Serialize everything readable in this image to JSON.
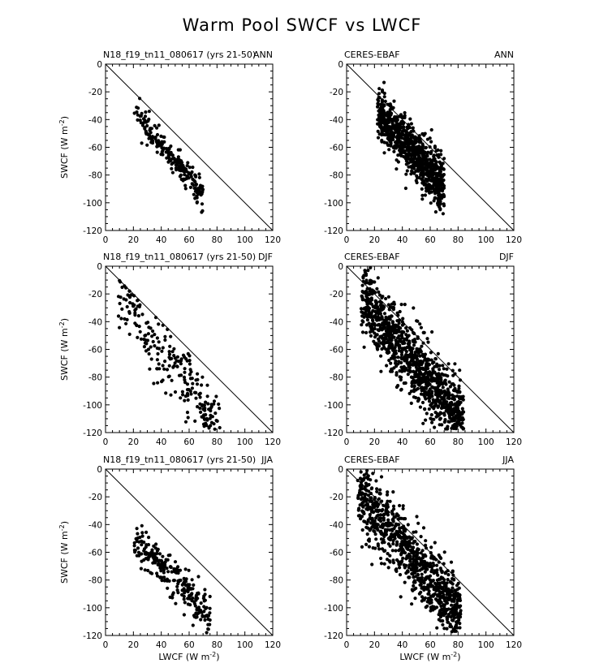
{
  "figure": {
    "title": "Warm Pool SWCF vs LWCF"
  },
  "chart_data": [
    {
      "type": "scatter",
      "panel": "model-ann",
      "title_left": "N18_f19_tn11_080617 (yrs 21-50)",
      "title_right": "ANN",
      "xlabel": "",
      "ylabel": "SWCF (W m^-2)",
      "xlim": [
        0,
        120
      ],
      "ylim": [
        -120,
        0
      ],
      "xticks": [
        0,
        20,
        40,
        60,
        80,
        100,
        120
      ],
      "yticks": [
        0,
        -20,
        -40,
        -60,
        -80,
        -100,
        -120
      ],
      "reference_line": [
        [
          0,
          0
        ],
        [
          120,
          -120
        ]
      ],
      "grid": false,
      "cloud": {
        "n": 220,
        "seed": 11,
        "x": [
          20,
          70
        ],
        "spread": 5,
        "slope": -1.2,
        "intercept": -10,
        "upper_bound": true
      }
    },
    {
      "type": "scatter",
      "panel": "obs-ann",
      "title_left": "CERES-EBAF",
      "title_right": "ANN",
      "xlabel": "",
      "ylabel": "",
      "xlim": [
        0,
        120
      ],
      "ylim": [
        -120,
        0
      ],
      "xticks": [
        0,
        20,
        40,
        60,
        80,
        100,
        120
      ],
      "yticks": [
        0,
        -20,
        -40,
        -60,
        -80,
        -100,
        -120
      ],
      "reference_line": [
        [
          0,
          0
        ],
        [
          120,
          -120
        ]
      ],
      "grid": false,
      "cloud": {
        "n": 900,
        "seed": 23,
        "x": [
          22,
          70
        ],
        "spread": 9,
        "slope": -1.15,
        "intercept": -8,
        "upper_bound": false
      }
    },
    {
      "type": "scatter",
      "panel": "model-djf",
      "title_left": "N18_f19_tn11_080617 (yrs 21-50)",
      "title_right": "DJF",
      "xlabel": "",
      "ylabel": "SWCF (W m^-2)",
      "xlim": [
        0,
        120
      ],
      "ylim": [
        -120,
        0
      ],
      "xticks": [
        0,
        20,
        40,
        60,
        80,
        100,
        120
      ],
      "yticks": [
        0,
        -20,
        -40,
        -60,
        -80,
        -100,
        -120
      ],
      "reference_line": [
        [
          0,
          0
        ],
        [
          120,
          -120
        ]
      ],
      "grid": false,
      "cloud": {
        "n": 240,
        "seed": 37,
        "x": [
          8,
          82
        ],
        "spread": 12,
        "slope": -1.35,
        "intercept": -8,
        "upper_bound": true
      }
    },
    {
      "type": "scatter",
      "panel": "obs-djf",
      "title_left": "CERES-EBAF",
      "title_right": "DJF",
      "xlabel": "",
      "ylabel": "",
      "xlim": [
        0,
        120
      ],
      "ylim": [
        -120,
        0
      ],
      "xticks": [
        0,
        20,
        40,
        60,
        80,
        100,
        120
      ],
      "yticks": [
        0,
        -20,
        -40,
        -60,
        -80,
        -100,
        -120
      ],
      "reference_line": [
        [
          0,
          0
        ],
        [
          120,
          -120
        ]
      ],
      "grid": false,
      "cloud": {
        "n": 1100,
        "seed": 41,
        "x": [
          10,
          84
        ],
        "spread": 13,
        "slope": -1.25,
        "intercept": -10,
        "upper_bound": false
      }
    },
    {
      "type": "scatter",
      "panel": "model-jja",
      "title_left": "N18_f19_tn11_080617 (yrs 21-50)",
      "title_right": "JJA",
      "xlabel": "LWCF (W m^-2)",
      "ylabel": "SWCF (W m^-2)",
      "xlim": [
        0,
        120
      ],
      "ylim": [
        -120,
        0
      ],
      "xticks": [
        0,
        20,
        40,
        60,
        80,
        100,
        120
      ],
      "yticks": [
        0,
        -20,
        -40,
        -60,
        -80,
        -100,
        -120
      ],
      "reference_line": [
        [
          0,
          0
        ],
        [
          120,
          -120
        ]
      ],
      "grid": false,
      "cloud": {
        "n": 260,
        "seed": 53,
        "x": [
          20,
          75
        ],
        "spread": 7,
        "slope": -1.0,
        "intercept": -30,
        "upper_bound": true
      }
    },
    {
      "type": "scatter",
      "panel": "obs-jja",
      "title_left": "CERES-EBAF",
      "title_right": "JJA",
      "xlabel": "LWCF (W m^-2)",
      "ylabel": "",
      "xlim": [
        0,
        120
      ],
      "ylim": [
        -120,
        0
      ],
      "xticks": [
        0,
        20,
        40,
        60,
        80,
        100,
        120
      ],
      "yticks": [
        0,
        -20,
        -40,
        -60,
        -80,
        -100,
        -120
      ],
      "reference_line": [
        [
          0,
          0
        ],
        [
          120,
          -120
        ]
      ],
      "grid": false,
      "cloud": {
        "n": 900,
        "seed": 67,
        "x": [
          8,
          82
        ],
        "spread": 12,
        "slope": -1.2,
        "intercept": -8,
        "upper_bound": false
      }
    }
  ]
}
